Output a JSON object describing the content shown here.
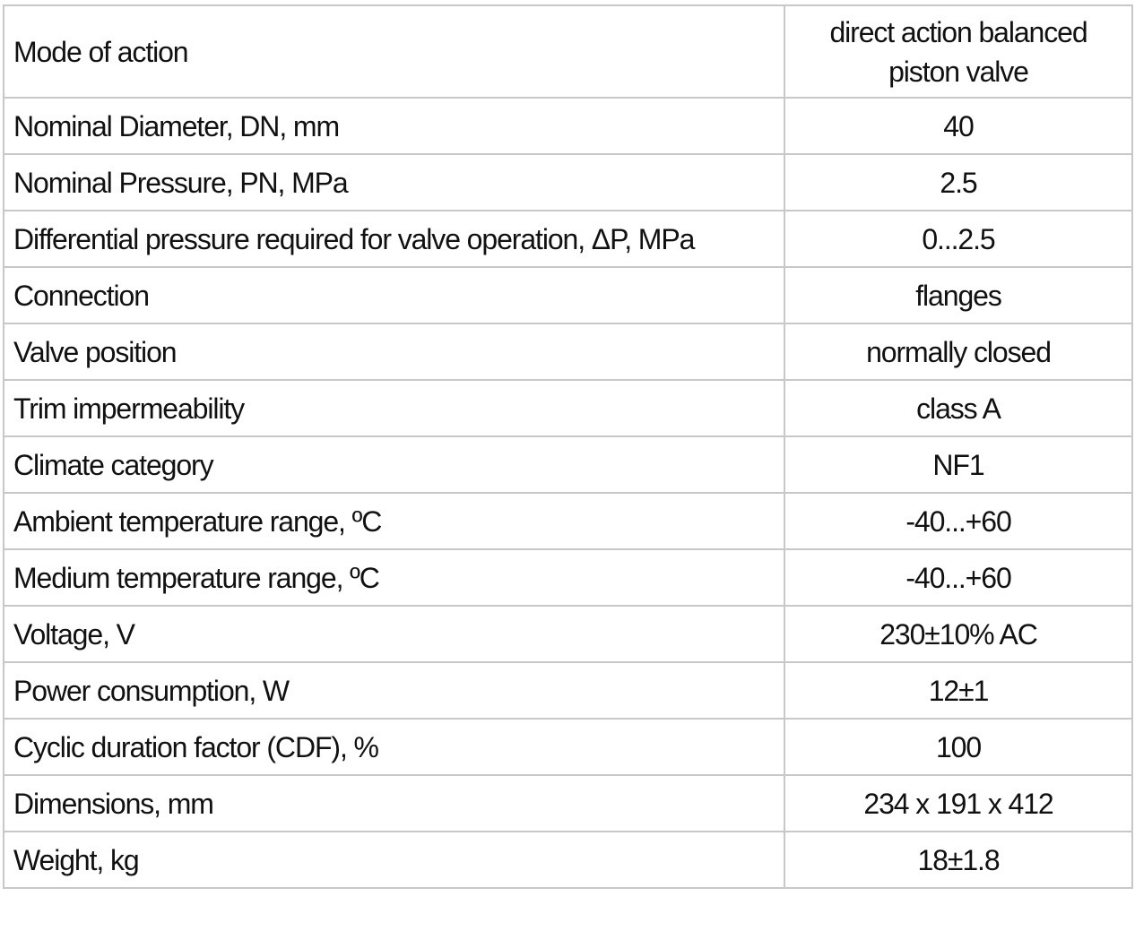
{
  "rows": [
    {
      "label": "Mode of action",
      "value": "direct action balanced piston valve"
    },
    {
      "label": "Nominal Diameter, DN, mm",
      "value": "40"
    },
    {
      "label": "Nominal Pressure, PN, MPa",
      "value": "2.5"
    },
    {
      "label": "Differential pressure required for valve operation, ΔP, MPa",
      "value": "0...2.5"
    },
    {
      "label": "Connection",
      "value": "flanges"
    },
    {
      "label": "Valve position",
      "value": "normally closed"
    },
    {
      "label": "Trim impermeability",
      "value": "class A"
    },
    {
      "label": "Climate category",
      "value": "NF1"
    },
    {
      "label": "Ambient temperature range, ºC",
      "value": "-40...+60"
    },
    {
      "label": "Medium temperature range, ºC",
      "value": "-40...+60"
    },
    {
      "label": "Voltage, V",
      "value": "230±10% AC"
    },
    {
      "label": "Power consumption, W",
      "value": "12±1"
    },
    {
      "label": "Cyclic duration factor (CDF), %",
      "value": "100"
    },
    {
      "label": "Dimensions, mm",
      "value": "234 x 191 x 412"
    },
    {
      "label": "Weight, kg",
      "value": "18±1.8"
    }
  ]
}
